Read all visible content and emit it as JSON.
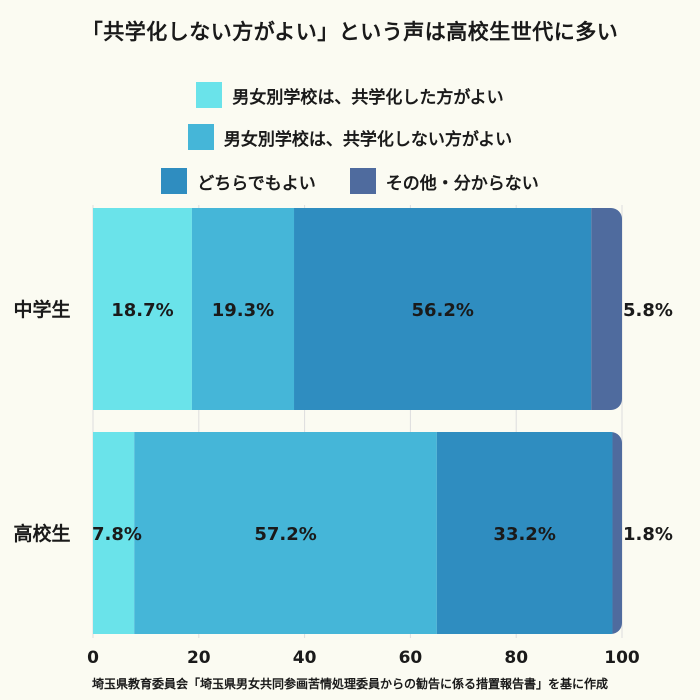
{
  "title": "「共学化しない方がよい」という声は高校生世代に多い",
  "footer": "埼玉県教育委員会「埼玉県男女共同参画苦情処理委員からの勧告に係る措置報告書」を基に作成",
  "chart_data": {
    "type": "bar",
    "orientation": "horizontal",
    "stacked": true,
    "categories": [
      "中学生",
      "高校生"
    ],
    "series": [
      {
        "name": "男女別学校は、共学化した方がよい",
        "color": "#6ae3ea",
        "values": [
          18.7,
          7.8
        ],
        "labels": [
          "18.7%",
          "7.8%"
        ]
      },
      {
        "name": "男女別学校は、共学化しない方がよい",
        "color": "#45b6d8",
        "values": [
          19.3,
          57.2
        ],
        "labels": [
          "19.3%",
          "57.2%"
        ]
      },
      {
        "name": "どちらでもよい",
        "color": "#2f8dc0",
        "values": [
          56.2,
          33.2
        ],
        "labels": [
          "56.2%",
          "33.2%"
        ]
      },
      {
        "name": "その他・分からない",
        "color": "#4f6b9e",
        "values": [
          5.8,
          1.8
        ],
        "labels": [
          "5.8%",
          "1.8%"
        ]
      }
    ],
    "xlim": [
      0,
      100
    ],
    "xticks": [
      "0",
      "20",
      "40",
      "60",
      "80",
      "100"
    ],
    "grid": true,
    "legend_position": "top"
  }
}
